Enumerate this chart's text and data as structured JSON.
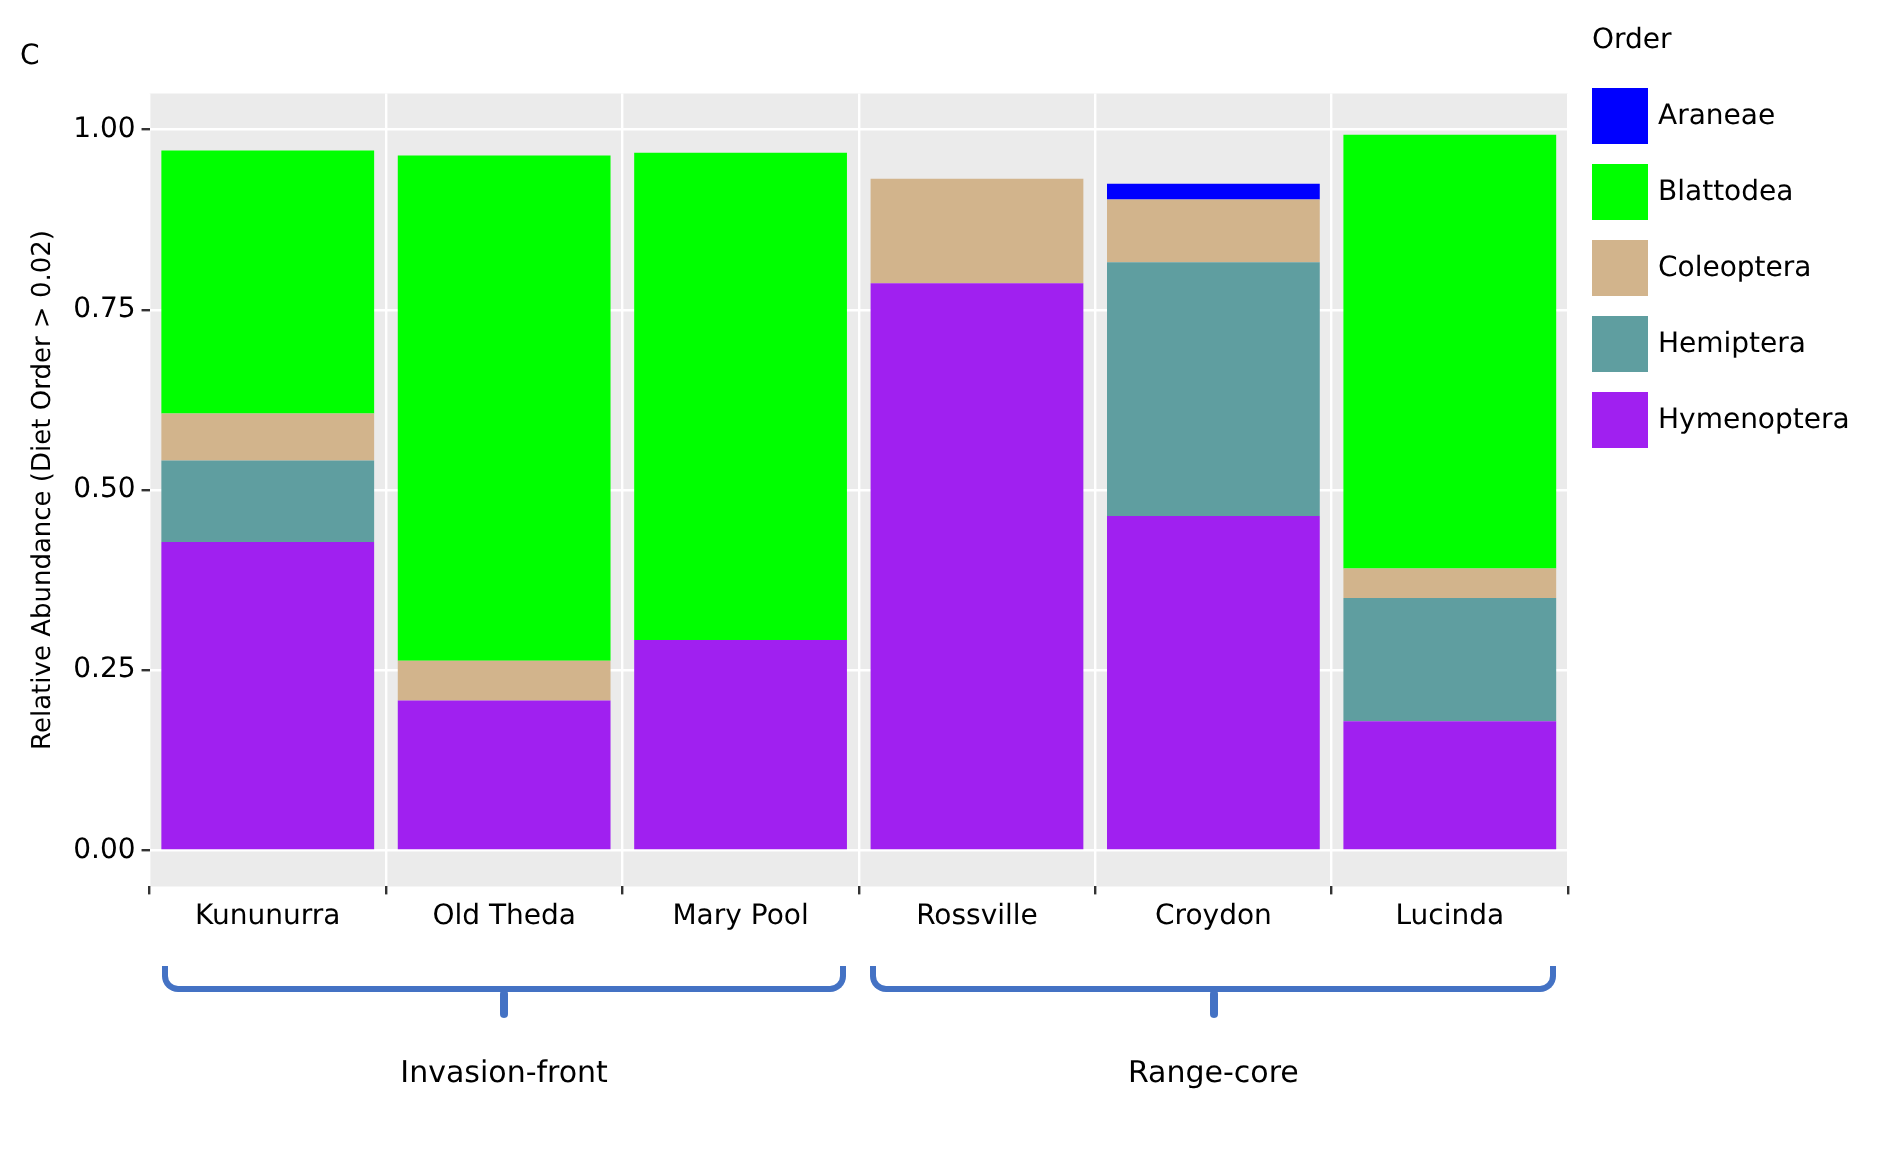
{
  "chart_data": {
    "type": "bar",
    "title": "C",
    "ylabel": "Relative Abundance (Diet Order > 0.02)",
    "legend_title": "Order",
    "categories": [
      "Kununurra",
      "Old Theda",
      "Mary Pool",
      "Rossville",
      "Croydon",
      "Lucinda"
    ],
    "stacked": true,
    "series": [
      {
        "name": "Hymenoptera",
        "color": "#a020f0",
        "values": [
          0.428,
          0.208,
          0.292,
          0.787,
          0.464,
          0.179
        ]
      },
      {
        "name": "Hemiptera",
        "color": "#5f9ea0",
        "values": [
          0.113,
          null,
          null,
          null,
          0.352,
          0.171
        ]
      },
      {
        "name": "Coleoptera",
        "color": "#d2b48c",
        "values": [
          0.065,
          0.055,
          null,
          0.145,
          0.087,
          0.041
        ]
      },
      {
        "name": "Blattodea",
        "color": "#00ff00",
        "values": [
          0.365,
          0.701,
          0.676,
          null,
          null,
          0.602
        ]
      },
      {
        "name": "Araneae",
        "color": "#0000ff",
        "values": [
          null,
          null,
          null,
          null,
          0.022,
          null
        ]
      }
    ],
    "ylim": [
      -0.05,
      1.05
    ],
    "yticks": [
      {
        "value": 0,
        "label": "0.00"
      },
      {
        "value": 0.25,
        "label": "0.25"
      },
      {
        "value": 0.5,
        "label": "0.50"
      },
      {
        "value": 0.75,
        "label": "0.75"
      },
      {
        "value": 1,
        "label": "1.00"
      }
    ],
    "grid": true,
    "legend": "right",
    "annotations": [
      "Invasion-front",
      "Range-core"
    ]
  }
}
